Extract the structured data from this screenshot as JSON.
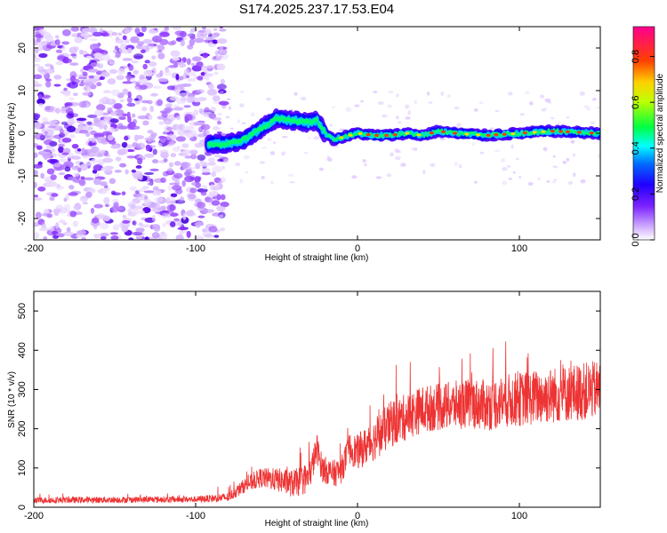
{
  "title": "S174.2025.237.17.53.E04",
  "chart_data": [
    {
      "type": "heatmap",
      "name": "spectrogram",
      "xlabel": "Height of straight line (km)",
      "ylabel": "Frequency (Hz)",
      "xlim": [
        -200,
        150
      ],
      "ylim": [
        -25,
        25
      ],
      "xticks": [
        -200,
        -100,
        0,
        100
      ],
      "xtick_labels": [
        "-200",
        "-100",
        "0",
        "100"
      ],
      "yticks": [
        -20,
        -10,
        0,
        10,
        20
      ],
      "ytick_labels": [
        "-20",
        "-10",
        "0",
        "10",
        "20"
      ],
      "description_trace": {
        "x": [
          -90,
          -80,
          -70,
          -60,
          -50,
          -40,
          -30,
          -25,
          -20,
          -15,
          -10,
          0,
          10,
          20,
          30,
          40,
          50,
          60,
          80,
          100,
          120,
          150
        ],
        "y": [
          -2.5,
          -2.5,
          -1.5,
          1.0,
          3.5,
          3.0,
          2.5,
          3.0,
          0.0,
          -1.5,
          -1.0,
          0.0,
          -0.5,
          -0.5,
          0.0,
          -0.5,
          0.5,
          0.0,
          -0.5,
          0.0,
          0.5,
          0.0
        ]
      },
      "colorbar": {
        "label": "Normalized spectral amplitude",
        "range": [
          0,
          0.93
        ],
        "ticks": [
          0.0,
          0.2,
          0.4,
          0.6,
          0.8
        ],
        "tick_labels": [
          "0.0",
          "0.2",
          "0.4",
          "0.6",
          "0.8"
        ],
        "colormap": [
          "#ffffff",
          "#9d40ff",
          "#3a00ff",
          "#0000ff",
          "#00ffff",
          "#00ff00",
          "#ffff00",
          "#ff8000",
          "#ff0000",
          "#ff00a0"
        ]
      }
    },
    {
      "type": "line",
      "name": "snr",
      "xlabel": "Height of straight line (km)",
      "ylabel": "SNR (10 * v/v)",
      "xlim": [
        -200,
        150
      ],
      "ylim": [
        0,
        550
      ],
      "xticks": [
        -200,
        -100,
        0,
        100
      ],
      "xtick_labels": [
        "-200",
        "-100",
        "0",
        "100"
      ],
      "yticks": [
        0,
        100,
        200,
        300,
        400,
        500
      ],
      "ytick_labels": [
        "0",
        "100",
        "200",
        "300",
        "400",
        "500"
      ],
      "color": "#ee3333",
      "trend": {
        "x": [
          -200,
          -100,
          -80,
          -70,
          -60,
          -50,
          -40,
          -30,
          -25,
          -22,
          -20,
          -15,
          -10,
          -5,
          0,
          10,
          20,
          30,
          40,
          50,
          60,
          70,
          80,
          90,
          100,
          110,
          120,
          130,
          140,
          150
        ],
        "y": [
          18,
          20,
          25,
          55,
          75,
          70,
          60,
          75,
          150,
          100,
          95,
          85,
          95,
          150,
          140,
          170,
          210,
          230,
          250,
          255,
          260,
          265,
          260,
          270,
          275,
          280,
          285,
          290,
          295,
          300
        ]
      },
      "noise_amplitude": {
        "x": [
          -200,
          -100,
          -80,
          -60,
          -30,
          -20,
          -10,
          0,
          20,
          50,
          100,
          150
        ],
        "y": [
          8,
          8,
          12,
          25,
          40,
          35,
          35,
          45,
          60,
          60,
          70,
          75
        ]
      }
    }
  ]
}
